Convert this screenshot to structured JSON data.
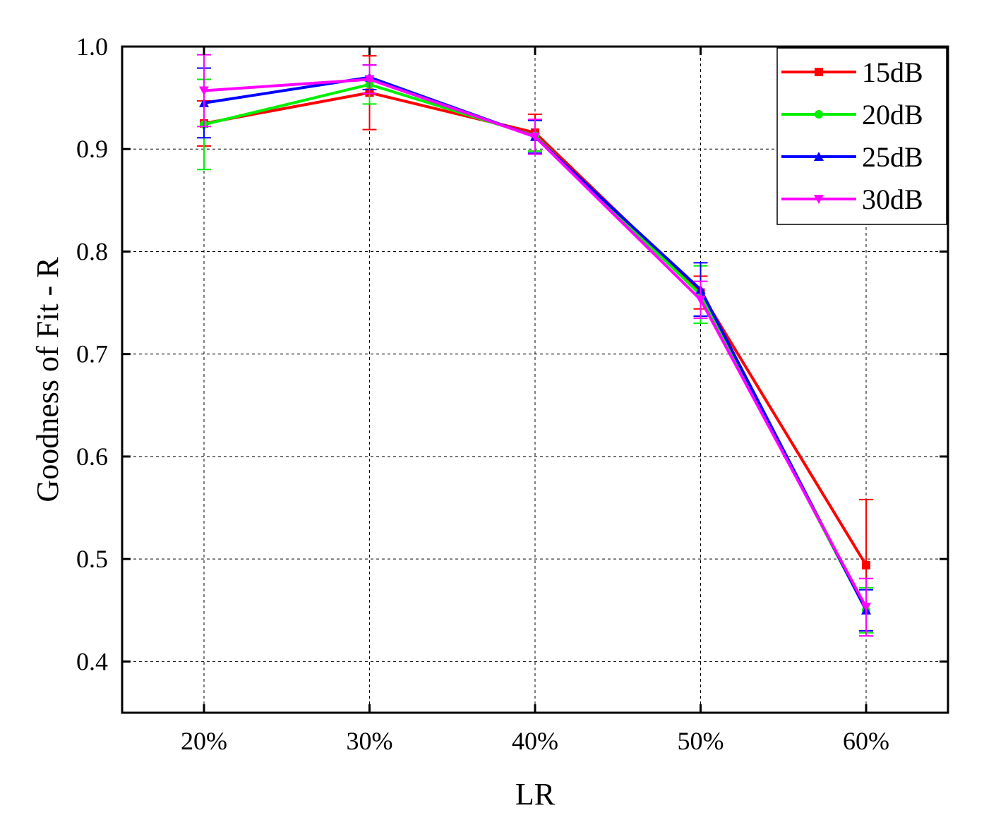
{
  "chart_data": {
    "type": "line",
    "categories": [
      "20%",
      "30%",
      "40%",
      "50%",
      "60%"
    ],
    "xlabel": "LR",
    "ylabel": "Goodness of Fit - R",
    "ylim": [
      0.35,
      1.0
    ],
    "yticks": [
      0.4,
      0.5,
      0.6,
      0.7,
      0.8,
      0.9,
      1.0
    ],
    "ytick_labels": [
      "0.4",
      "0.5",
      "0.6",
      "0.7",
      "0.8",
      "0.9",
      "1.0"
    ],
    "grid": true,
    "legend_position": "top-right",
    "series": [
      {
        "name": "15dB",
        "color": "#ff0000",
        "marker": "square",
        "values": [
          0.925,
          0.955,
          0.916,
          0.76,
          0.494
        ],
        "error": [
          0.022,
          0.036,
          0.018,
          0.016,
          0.064
        ]
      },
      {
        "name": "20dB",
        "color": "#00ee00",
        "marker": "circle",
        "values": [
          0.924,
          0.963,
          0.913,
          0.758,
          0.45
        ],
        "error": [
          0.044,
          0.019,
          0.015,
          0.028,
          0.022
        ]
      },
      {
        "name": "25dB",
        "color": "#0000ff",
        "marker": "triangle-up",
        "values": [
          0.945,
          0.97,
          0.912,
          0.763,
          0.45
        ],
        "error": [
          0.034,
          0.012,
          0.016,
          0.026,
          0.02
        ]
      },
      {
        "name": "30dB",
        "color": "#ff00ff",
        "marker": "triangle-down",
        "values": [
          0.957,
          0.968,
          0.912,
          0.753,
          0.453
        ],
        "error": [
          0.035,
          0.014,
          0.017,
          0.018,
          0.028
        ]
      }
    ]
  }
}
